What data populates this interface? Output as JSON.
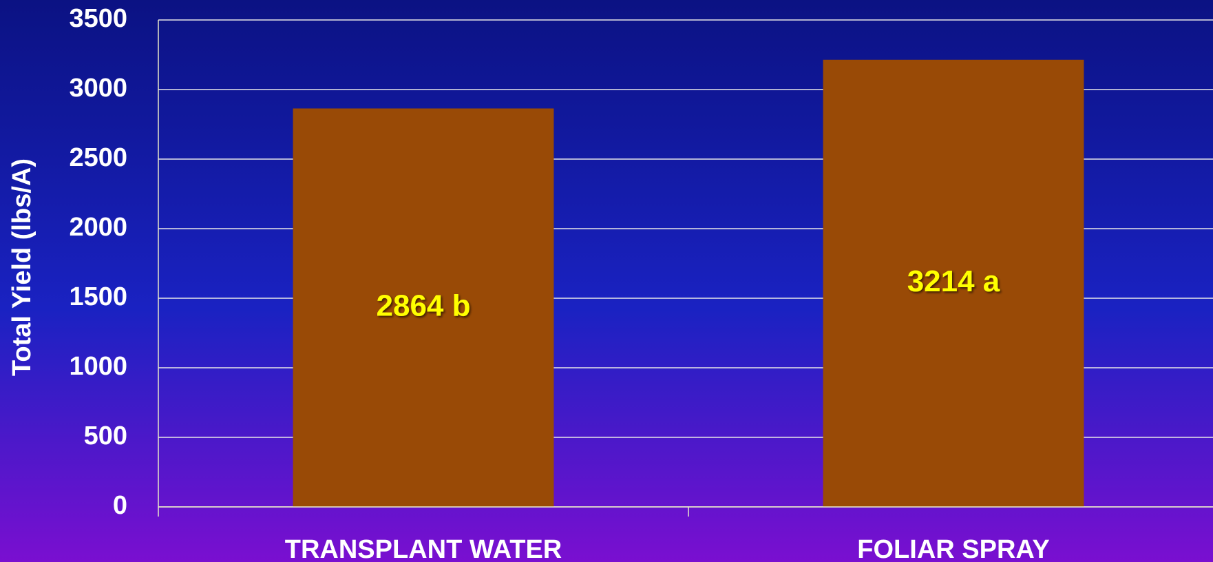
{
  "chart_data": {
    "type": "bar",
    "y_label": "Total Yield (lbs/A)",
    "categories": [
      "TRANSPLANT WATER",
      "FOLIAR SPRAY"
    ],
    "values": [
      2864,
      3214
    ],
    "value_labels": [
      "2864 b",
      "3214 a"
    ],
    "color": "#994a06",
    "ylim": [
      0,
      3500
    ],
    "yticks": [
      0,
      500,
      1000,
      1500,
      2000,
      2500,
      3000,
      3500
    ],
    "grid": true
  }
}
